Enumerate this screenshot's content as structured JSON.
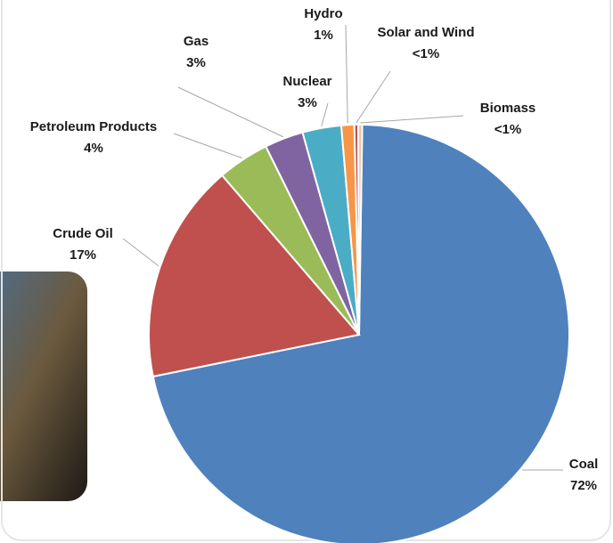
{
  "chart_data": {
    "type": "pie",
    "categories": [
      "Coal",
      "Crude Oil",
      "Petroleum Products",
      "Gas",
      "Nuclear",
      "Hydro",
      "Solar and Wind",
      "Biomass"
    ],
    "values": [
      72,
      17,
      4,
      3,
      3,
      1,
      0.3,
      0.3
    ],
    "value_labels": [
      "72%",
      "17%",
      "4%",
      "3%",
      "3%",
      "1%",
      "<1%",
      "<1%"
    ],
    "colors": [
      "#4f81bd",
      "#c0504d",
      "#9bbb59",
      "#8064a2",
      "#4bacc6",
      "#f79646",
      "#c0504d",
      "#f2c0a0"
    ]
  }
}
